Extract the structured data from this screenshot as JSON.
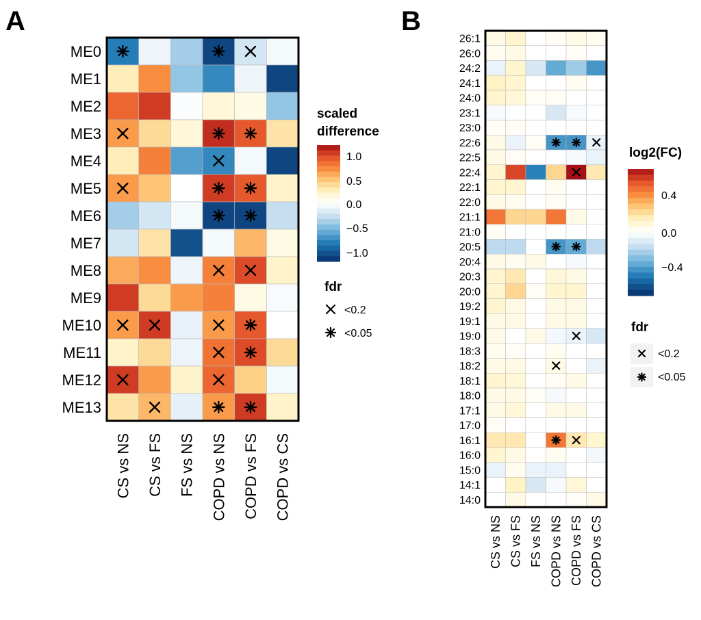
{
  "colorscale": {
    "stops": [
      {
        "v": -1.0,
        "c": "#08306b"
      },
      {
        "v": -0.7,
        "c": "#1f78b4"
      },
      {
        "v": -0.45,
        "c": "#74b7dd"
      },
      {
        "v": -0.2,
        "c": "#cfe3f2"
      },
      {
        "v": 0.0,
        "c": "#ffffff"
      },
      {
        "v": 0.2,
        "c": "#fff3c4"
      },
      {
        "v": 0.4,
        "c": "#fdc878"
      },
      {
        "v": 0.6,
        "c": "#f98a3c"
      },
      {
        "v": 0.8,
        "c": "#e3512a"
      },
      {
        "v": 1.0,
        "c": "#a50f15"
      }
    ]
  },
  "panels": {
    "A": {
      "letter": "A",
      "legend": {
        "title_line1": "scaled",
        "title_line2": "difference",
        "ticks": [
          "1.0",
          "0.5",
          "0.0",
          "−0.5",
          "−1.0"
        ],
        "fdr_title": "fdr",
        "fdr_items": [
          "<0.2",
          "<0.05"
        ]
      }
    },
    "B": {
      "letter": "B",
      "legend": {
        "title": "log2(FC)",
        "ticks": [
          "0.4",
          "0.0",
          "−0.4"
        ],
        "fdr_title": "fdr",
        "fdr_items": [
          "<0.2",
          "<0.05"
        ]
      }
    }
  },
  "chart_data": [
    {
      "type": "heatmap",
      "panel": "A",
      "legend_title": "scaled difference",
      "color_range": [
        -1.1,
        1.1
      ],
      "x": [
        "CS vs NS",
        "CS vs FS",
        "FS vs NS",
        "COPD vs NS",
        "COPD vs FS",
        "COPD vs CS"
      ],
      "y": [
        "ME0",
        "ME1",
        "ME2",
        "ME3",
        "ME4",
        "ME5",
        "ME6",
        "ME7",
        "ME8",
        "ME9",
        "ME10",
        "ME11",
        "ME12",
        "ME13"
      ],
      "values": [
        [
          -0.75,
          -0.08,
          -0.35,
          -1.0,
          -0.2,
          -0.05
        ],
        [
          0.25,
          0.65,
          -0.4,
          -0.7,
          -0.08,
          -1.0
        ],
        [
          0.8,
          0.95,
          -0.02,
          0.15,
          0.1,
          -0.4
        ],
        [
          0.6,
          0.35,
          0.15,
          1.0,
          0.85,
          0.3
        ],
        [
          0.25,
          0.7,
          -0.6,
          -0.7,
          -0.05,
          -1.0
        ],
        [
          0.6,
          0.45,
          0.0,
          0.95,
          0.85,
          0.2
        ],
        [
          -0.35,
          -0.2,
          -0.05,
          -1.0,
          -1.0,
          -0.25
        ],
        [
          -0.2,
          0.3,
          -0.95,
          -0.05,
          0.5,
          0.1
        ],
        [
          0.55,
          0.65,
          -0.08,
          0.7,
          0.9,
          0.2
        ],
        [
          0.95,
          0.35,
          0.6,
          0.7,
          0.1,
          -0.03
        ],
        [
          0.6,
          0.95,
          -0.1,
          0.6,
          0.85,
          0.0
        ],
        [
          0.2,
          0.35,
          -0.08,
          0.75,
          0.9,
          0.35
        ],
        [
          0.95,
          0.6,
          0.2,
          0.8,
          0.4,
          -0.05
        ],
        [
          0.3,
          0.5,
          -0.12,
          0.6,
          0.95,
          0.2
        ]
      ],
      "fdr": [
        [
          "*",
          "",
          "",
          "*",
          "x",
          ""
        ],
        [
          "",
          "",
          "",
          "",
          "",
          ""
        ],
        [
          "",
          "",
          "",
          "",
          "",
          ""
        ],
        [
          "x",
          "",
          "",
          "*",
          "*",
          ""
        ],
        [
          "",
          "",
          "",
          "x",
          "",
          ""
        ],
        [
          "x",
          "",
          "",
          "*",
          "*",
          ""
        ],
        [
          "",
          "",
          "",
          "*",
          "*",
          ""
        ],
        [
          "",
          "",
          "",
          "",
          "",
          ""
        ],
        [
          "",
          "",
          "",
          "x",
          "x",
          ""
        ],
        [
          "",
          "",
          "",
          "",
          "",
          ""
        ],
        [
          "x",
          "x",
          "",
          "x",
          "*",
          ""
        ],
        [
          "",
          "",
          "",
          "x",
          "*",
          ""
        ],
        [
          "x",
          "",
          "",
          "x",
          "",
          ""
        ],
        [
          "",
          "x",
          "",
          "*",
          "*",
          ""
        ]
      ]
    },
    {
      "type": "heatmap",
      "panel": "B",
      "legend_title": "log2(FC)",
      "color_range": [
        -0.6,
        0.6
      ],
      "x": [
        "CS vs NS",
        "CS vs FS",
        "FS vs NS",
        "COPD vs NS",
        "COPD vs FS",
        "COPD vs CS"
      ],
      "y": [
        "26:1",
        "26:0",
        "24:2",
        "24:1",
        "24:0",
        "23:1",
        "23:0",
        "22:6",
        "22:5",
        "22:4",
        "22:1",
        "22:0",
        "21:1",
        "21:0",
        "20:5",
        "20:4",
        "20:3",
        "20:0",
        "19:2",
        "19:1",
        "19:0",
        "18:3",
        "18:2",
        "18:1",
        "18:0",
        "17:1",
        "17:0",
        "16:1",
        "16:0",
        "15:0",
        "14:1",
        "14:0"
      ],
      "values": [
        [
          0.05,
          0.1,
          0.0,
          0.02,
          0.05,
          0.03
        ],
        [
          0.03,
          0.05,
          0.0,
          0.0,
          0.02,
          0.0
        ],
        [
          -0.05,
          0.1,
          -0.1,
          -0.3,
          -0.2,
          -0.35
        ],
        [
          0.12,
          0.1,
          0.0,
          0.0,
          0.03,
          0.0
        ],
        [
          0.1,
          0.08,
          0.02,
          0.02,
          0.0,
          0.0
        ],
        [
          -0.02,
          0.0,
          0.0,
          -0.1,
          -0.02,
          0.0
        ],
        [
          0.02,
          0.02,
          0.0,
          0.0,
          0.0,
          0.0
        ],
        [
          0.05,
          -0.05,
          0.02,
          -0.35,
          -0.35,
          -0.05
        ],
        [
          0.05,
          0.02,
          0.0,
          0.0,
          -0.02,
          -0.05
        ],
        [
          0.1,
          0.5,
          -0.4,
          0.2,
          0.6,
          0.15
        ],
        [
          0.1,
          0.1,
          0.0,
          0.03,
          0.0,
          0.0
        ],
        [
          0.05,
          0.03,
          0.0,
          0.02,
          0.0,
          0.0
        ],
        [
          0.4,
          0.2,
          0.2,
          0.4,
          0.05,
          0.0
        ],
        [
          0.02,
          0.0,
          0.0,
          0.0,
          0.0,
          0.0
        ],
        [
          -0.15,
          -0.15,
          0.0,
          -0.35,
          -0.3,
          -0.15
        ],
        [
          0.05,
          0.03,
          0.05,
          0.0,
          -0.02,
          0.0
        ],
        [
          0.1,
          0.15,
          0.0,
          0.08,
          0.05,
          0.0
        ],
        [
          0.1,
          0.2,
          0.02,
          0.1,
          0.1,
          0.0
        ],
        [
          0.1,
          0.05,
          0.0,
          0.05,
          0.05,
          0.0
        ],
        [
          0.05,
          0.05,
          0.0,
          0.05,
          0.05,
          0.0
        ],
        [
          0.05,
          0.0,
          0.05,
          -0.03,
          -0.05,
          -0.1
        ],
        [
          0.03,
          0.02,
          0.0,
          0.03,
          0.0,
          0.0
        ],
        [
          0.05,
          0.05,
          0.0,
          0.05,
          0.0,
          -0.05
        ],
        [
          0.1,
          0.08,
          0.0,
          0.02,
          0.05,
          0.0
        ],
        [
          0.05,
          0.05,
          0.02,
          -0.02,
          0.0,
          0.0
        ],
        [
          0.05,
          0.08,
          0.0,
          0.05,
          0.05,
          0.0
        ],
        [
          0.02,
          0.0,
          0.0,
          0.0,
          0.0,
          0.0
        ],
        [
          0.15,
          0.15,
          0.0,
          0.4,
          0.15,
          0.1
        ],
        [
          0.1,
          0.05,
          0.0,
          0.03,
          0.0,
          -0.03
        ],
        [
          -0.05,
          0.03,
          -0.05,
          -0.05,
          0.0,
          0.0
        ],
        [
          0.0,
          0.12,
          -0.1,
          -0.02,
          0.08,
          0.0
        ],
        [
          0.0,
          0.05,
          0.0,
          0.0,
          0.02,
          0.05
        ]
      ],
      "fdr": [
        [
          "",
          "",
          "",
          "",
          "",
          ""
        ],
        [
          "",
          "",
          "",
          "",
          "",
          ""
        ],
        [
          "",
          "",
          "",
          "",
          "",
          ""
        ],
        [
          "",
          "",
          "",
          "",
          "",
          ""
        ],
        [
          "",
          "",
          "",
          "",
          "",
          ""
        ],
        [
          "",
          "",
          "",
          "",
          "",
          ""
        ],
        [
          "",
          "",
          "",
          "",
          "",
          ""
        ],
        [
          "",
          "",
          "",
          "*",
          "*",
          "x"
        ],
        [
          "",
          "",
          "",
          "",
          "",
          ""
        ],
        [
          "",
          "",
          "",
          "",
          "x",
          ""
        ],
        [
          "",
          "",
          "",
          "",
          "",
          ""
        ],
        [
          "",
          "",
          "",
          "",
          "",
          ""
        ],
        [
          "",
          "",
          "",
          "",
          "",
          ""
        ],
        [
          "",
          "",
          "",
          "",
          "",
          ""
        ],
        [
          "",
          "",
          "",
          "*",
          "*",
          ""
        ],
        [
          "",
          "",
          "",
          "",
          "",
          ""
        ],
        [
          "",
          "",
          "",
          "",
          "",
          ""
        ],
        [
          "",
          "",
          "",
          "",
          "",
          ""
        ],
        [
          "",
          "",
          "",
          "",
          "",
          ""
        ],
        [
          "",
          "",
          "",
          "",
          "",
          ""
        ],
        [
          "",
          "",
          "",
          "",
          "x",
          ""
        ],
        [
          "",
          "",
          "",
          "",
          "",
          ""
        ],
        [
          "",
          "",
          "",
          "x",
          "",
          ""
        ],
        [
          "",
          "",
          "",
          "",
          "",
          ""
        ],
        [
          "",
          "",
          "",
          "",
          "",
          ""
        ],
        [
          "",
          "",
          "",
          "",
          "",
          ""
        ],
        [
          "",
          "",
          "",
          "",
          "",
          ""
        ],
        [
          "",
          "",
          "",
          "*",
          "x",
          ""
        ],
        [
          "",
          "",
          "",
          "",
          "",
          ""
        ],
        [
          "",
          "",
          "",
          "",
          "",
          ""
        ],
        [
          "",
          "",
          "",
          "",
          "",
          ""
        ],
        [
          "",
          "",
          "",
          "",
          "",
          ""
        ]
      ]
    }
  ]
}
